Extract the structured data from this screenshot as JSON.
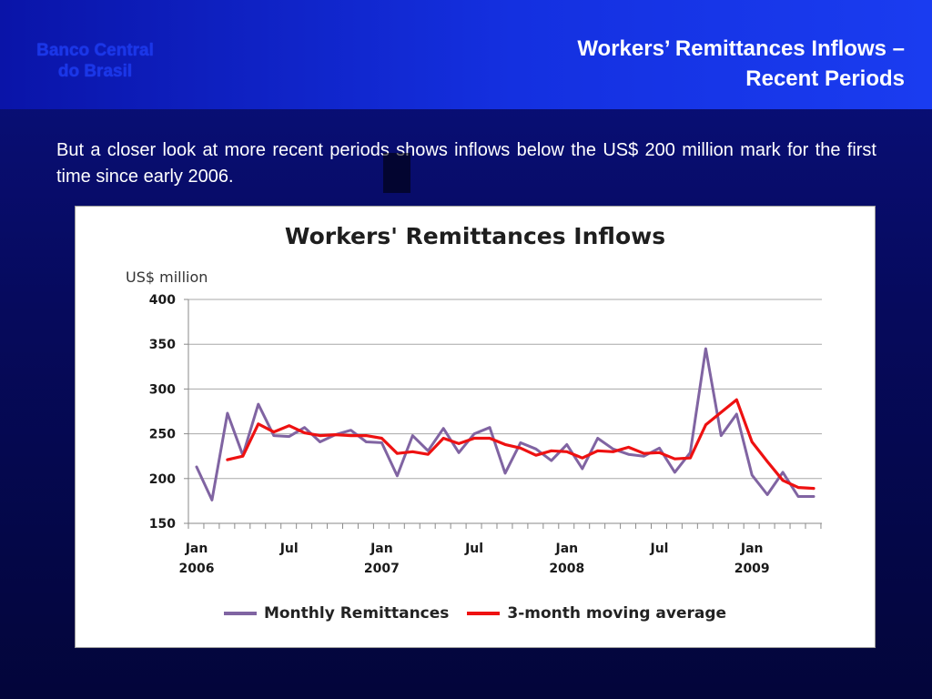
{
  "header": {
    "logo_line1": "Banco Central",
    "logo_line2": "do Brasil",
    "title_line1": "Workers’ Remittances Inflows –",
    "title_line2": "Recent Periods"
  },
  "intro_text": "But a closer look at more recent periods shows inflows below the US$ 200 million mark for the first time since early 2006.",
  "colors": {
    "monthly": "#8064a2",
    "moving_average": "#ee1111"
  },
  "chart_data": {
    "type": "line",
    "title": "Workers' Remittances Inflows",
    "ylabel": "US$ million",
    "xlabel": "",
    "ylim": [
      150,
      400
    ],
    "yticks": [
      150,
      200,
      250,
      300,
      350,
      400
    ],
    "x_tick_labels": [
      {
        "index": 0,
        "line1": "Jan",
        "line2": "2006"
      },
      {
        "index": 6,
        "line1": "Jul",
        "line2": ""
      },
      {
        "index": 12,
        "line1": "Jan",
        "line2": "2007"
      },
      {
        "index": 18,
        "line1": "Jul",
        "line2": ""
      },
      {
        "index": 24,
        "line1": "Jan",
        "line2": "2008"
      },
      {
        "index": 30,
        "line1": "Jul",
        "line2": ""
      },
      {
        "index": 36,
        "line1": "Jan",
        "line2": "2009"
      }
    ],
    "grid": true,
    "legend_placement": "bottom",
    "series": [
      {
        "name": "Monthly Remittances",
        "values": [
          213,
          176,
          273,
          226,
          283,
          248,
          247,
          257,
          241,
          249,
          254,
          241,
          240,
          203,
          248,
          231,
          256,
          229,
          250,
          257,
          206,
          240,
          233,
          220,
          238,
          211,
          245,
          233,
          227,
          225,
          234,
          207,
          229,
          345,
          248,
          272,
          204,
          182,
          207,
          180,
          180
        ]
      },
      {
        "name": "3-month moving average",
        "values": [
          null,
          null,
          221,
          225,
          261,
          252,
          259,
          251,
          248,
          249,
          248,
          248,
          245,
          228,
          230,
          227,
          245,
          239,
          245,
          245,
          238,
          234,
          226,
          231,
          230,
          223,
          231,
          230,
          235,
          228,
          229,
          222,
          223,
          260,
          274,
          288,
          241,
          219,
          198,
          190,
          189
        ]
      }
    ]
  }
}
